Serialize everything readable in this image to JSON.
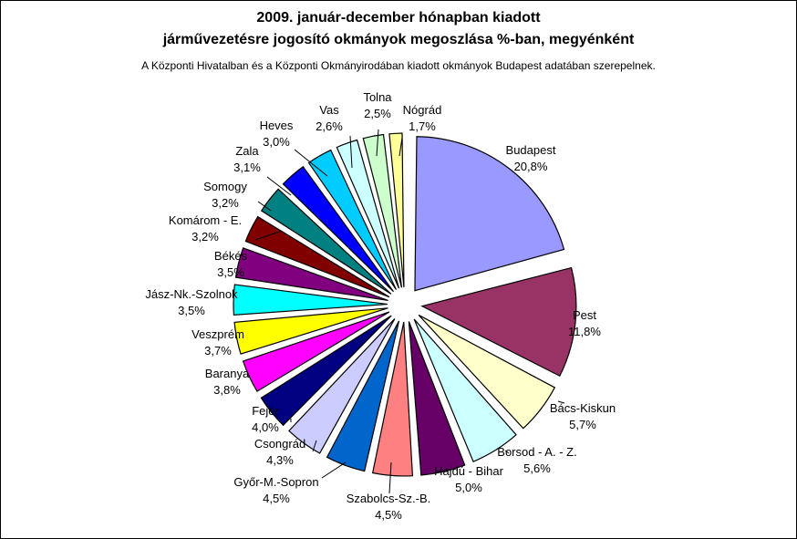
{
  "chart_data": {
    "type": "pie",
    "title_line1": "2009. január-december hónapban kiadott",
    "title_line2": "járművezetésre jogosító okmányok megoszlása %-ban, megyénként",
    "subtitle": "A Központi Hivatalban és a Központi Okmányirodában kiadott okmányok Budapest adatában szerepelnek.",
    "slices": [
      {
        "name": "Budapest",
        "value": 20.8,
        "label": "20,8%",
        "color": "#9999ff"
      },
      {
        "name": "Pest",
        "value": 11.8,
        "label": "11,8%",
        "color": "#993366"
      },
      {
        "name": "Bács-Kiskun",
        "value": 5.7,
        "label": "5,7%",
        "color": "#ffffcc"
      },
      {
        "name": "Borsod - A. - Z.",
        "value": 5.6,
        "label": "5,6%",
        "color": "#ccffff"
      },
      {
        "name": "Hajdú - Bihar",
        "value": 5.0,
        "label": "5,0%",
        "color": "#660066"
      },
      {
        "name": "Szabolcs-Sz.-B.",
        "value": 4.5,
        "label": "4,5%",
        "color": "#ff8080"
      },
      {
        "name": "Győr-M.-Sopron",
        "value": 4.5,
        "label": "4,5%",
        "color": "#0066cc"
      },
      {
        "name": "Csongrád",
        "value": 4.3,
        "label": "4,3%",
        "color": "#ccccff"
      },
      {
        "name": "Fejér",
        "value": 4.0,
        "label": "4,0%",
        "color": "#000080"
      },
      {
        "name": "Baranya",
        "value": 3.8,
        "label": "3,8%",
        "color": "#ff00ff"
      },
      {
        "name": "Veszprém",
        "value": 3.7,
        "label": "3,7%",
        "color": "#ffff00"
      },
      {
        "name": "Jász-Nk.-Szolnok",
        "value": 3.5,
        "label": "3,5%",
        "color": "#00ffff"
      },
      {
        "name": "Békés",
        "value": 3.5,
        "label": "3,5%",
        "color": "#800080"
      },
      {
        "name": "Komárom - E.",
        "value": 3.2,
        "label": "3,2%",
        "color": "#800000"
      },
      {
        "name": "Somogy",
        "value": 3.2,
        "label": "3,2%",
        "color": "#008080"
      },
      {
        "name": "Zala",
        "value": 3.1,
        "label": "3,1%",
        "color": "#0000ff"
      },
      {
        "name": "Heves",
        "value": 3.0,
        "label": "3,0%",
        "color": "#00ccff"
      },
      {
        "name": "Vas",
        "value": 2.6,
        "label": "2,6%",
        "color": "#ccffff"
      },
      {
        "name": "Tolna",
        "value": 2.5,
        "label": "2,5%",
        "color": "#ccffcc"
      },
      {
        "name": "Nógrád",
        "value": 1.7,
        "label": "1,7%",
        "color": "#ffff99"
      }
    ]
  }
}
